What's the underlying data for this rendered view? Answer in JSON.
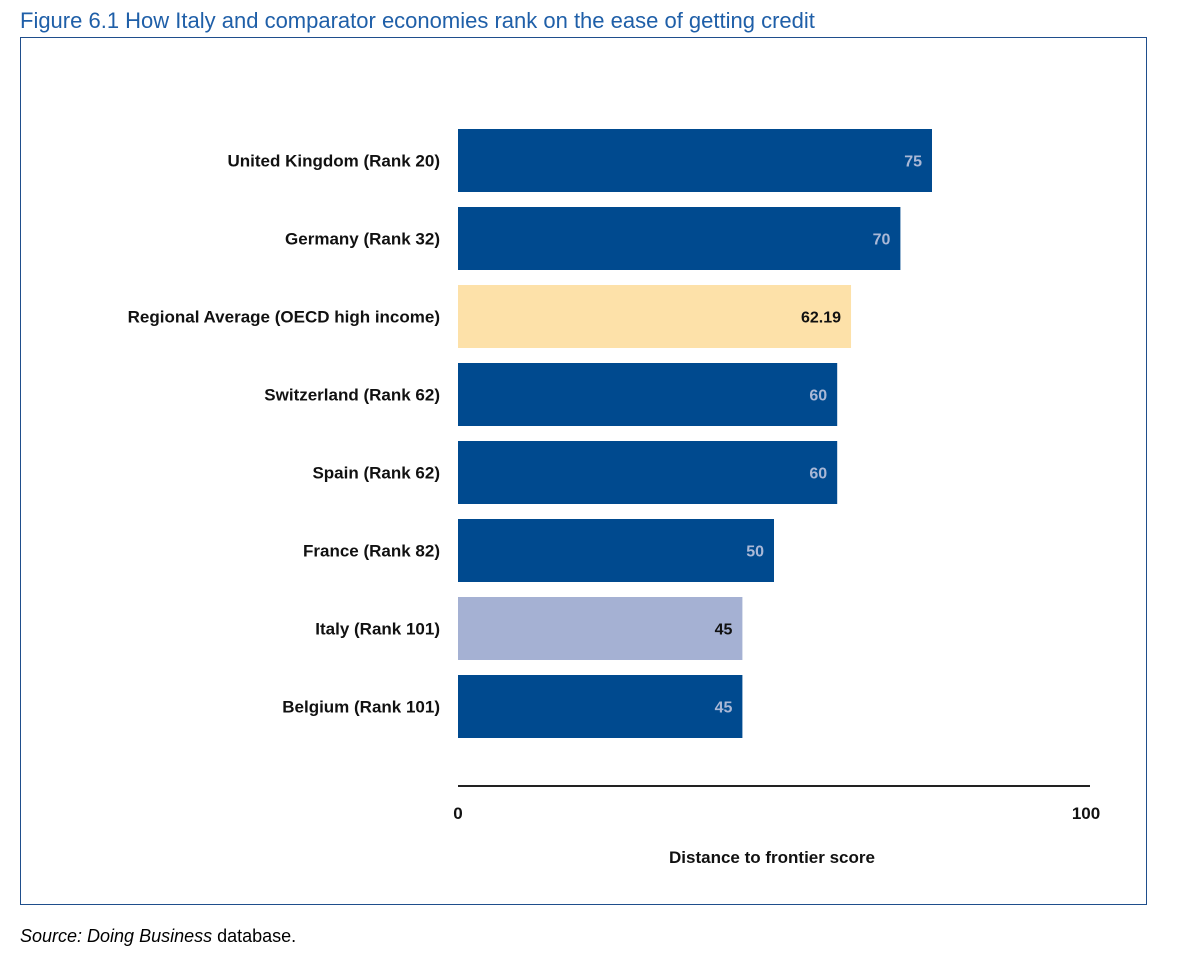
{
  "figure": {
    "title": "Figure 6.1 How Italy and comparator economies rank on the ease of getting credit"
  },
  "source": {
    "prefix": "Source: Doing Business",
    "suffix": " database."
  },
  "colors": {
    "country_bar": "#004a8f",
    "regional_bar": "#fde1a9",
    "italy_bar": "#a5b1d3",
    "label_on_dark": "#aab8d6",
    "label_on_light": "#111111",
    "title": "#1f5fa8",
    "frame": "#1f4e8c"
  },
  "chart_data": {
    "type": "bar",
    "orientation": "horizontal",
    "title": "",
    "xlabel": "Distance to frontier score",
    "ylabel": "",
    "xlim": [
      0,
      100
    ],
    "x_ticks": [
      "0",
      "100"
    ],
    "grid": false,
    "categories": [
      "United Kingdom (Rank 20)",
      "Germany (Rank 32)",
      "Regional Average (OECD high income)",
      "Switzerland (Rank 62)",
      "Spain (Rank 62)",
      "France (Rank 82)",
      "Italy (Rank 101)",
      "Belgium (Rank 101)"
    ],
    "values": [
      75,
      70,
      62.19,
      60,
      60,
      50,
      45,
      45
    ],
    "value_labels": [
      "75",
      "70",
      "62.19",
      "60",
      "60",
      "50",
      "45",
      "45"
    ],
    "highlight": {
      "Regional Average (OECD high income)": "regional",
      "Italy (Rank 101)": "italy"
    }
  }
}
